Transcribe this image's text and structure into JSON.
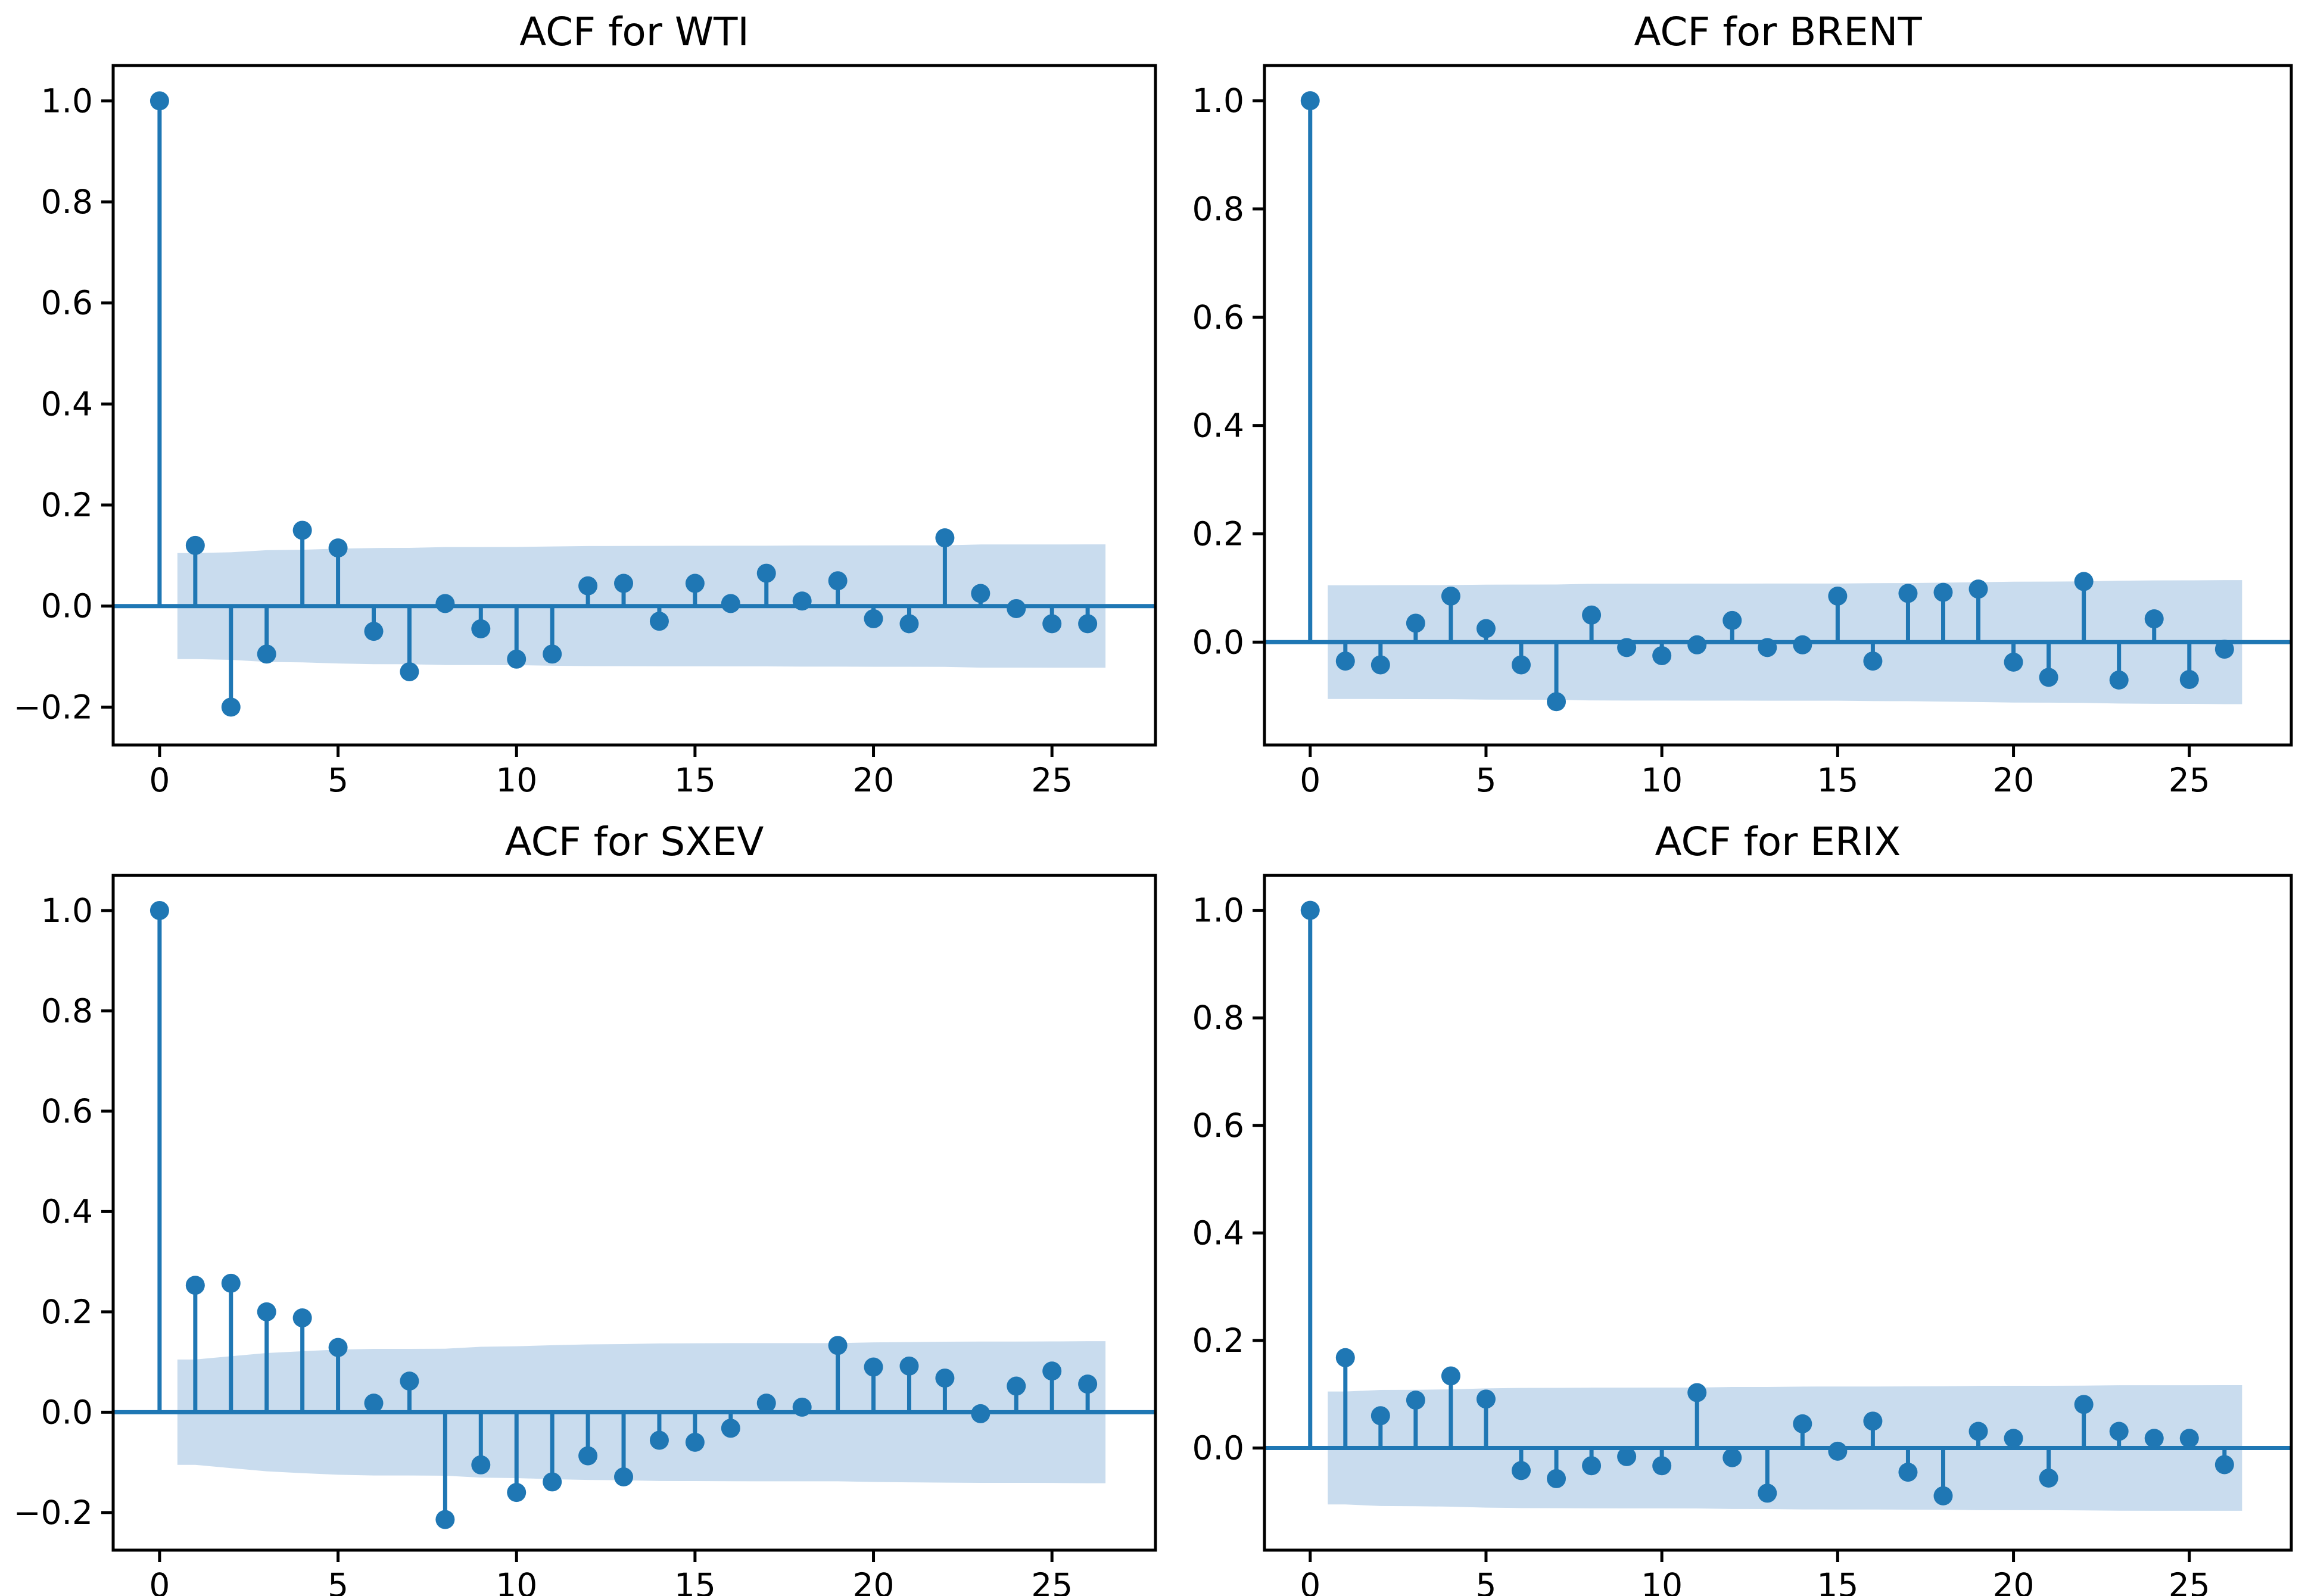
{
  "figure": {
    "background": "#ffffff",
    "accent_color": "#1f77b4",
    "band_color": "#c9dcee",
    "frame_color": "#000000",
    "tick_label_color": "#000000"
  },
  "chart_data": [
    {
      "type": "stem",
      "title": "ACF for WTI",
      "lags": [
        0,
        1,
        2,
        3,
        4,
        5,
        6,
        7,
        8,
        9,
        10,
        11,
        12,
        13,
        14,
        15,
        16,
        17,
        18,
        19,
        20,
        21,
        22,
        23,
        24,
        25,
        26
      ],
      "values": [
        1.0,
        0.12,
        -0.2,
        -0.095,
        0.15,
        0.115,
        -0.05,
        -0.13,
        0.005,
        -0.045,
        -0.105,
        -0.095,
        0.04,
        0.045,
        -0.03,
        0.045,
        0.005,
        0.065,
        0.01,
        0.05,
        -0.025,
        -0.035,
        0.135,
        0.025,
        -0.005,
        -0.035,
        -0.035
      ],
      "conf_band": {
        "halfwidth_lag1": 0.105,
        "x_start": 0.5,
        "x_end": 26.5
      },
      "xticks": [
        0,
        5,
        10,
        15,
        20,
        25
      ],
      "yticks": [
        1.0,
        0.8,
        0.6,
        0.4,
        0.2,
        0.0,
        -0.2
      ],
      "xlim": [
        -1.3,
        27.9
      ],
      "ylim": [
        -0.275,
        1.07
      ],
      "grid": false,
      "legend": null
    },
    {
      "type": "stem",
      "title": "ACF for BRENT",
      "lags": [
        0,
        1,
        2,
        3,
        4,
        5,
        6,
        7,
        8,
        9,
        10,
        11,
        12,
        13,
        14,
        15,
        16,
        17,
        18,
        19,
        20,
        21,
        22,
        23,
        24,
        25,
        26
      ],
      "values": [
        1.0,
        -0.035,
        -0.042,
        0.035,
        0.085,
        0.025,
        -0.042,
        -0.11,
        0.05,
        -0.01,
        -0.025,
        -0.005,
        0.04,
        -0.01,
        -0.005,
        0.085,
        -0.035,
        0.09,
        0.092,
        0.098,
        -0.037,
        -0.065,
        0.112,
        -0.07,
        0.043,
        -0.069,
        -0.013
      ],
      "conf_band": {
        "halfwidth_lag1": 0.105,
        "x_start": 0.5,
        "x_end": 26.5
      },
      "xticks": [
        0,
        5,
        10,
        15,
        20,
        25
      ],
      "yticks": [
        1.0,
        0.8,
        0.6,
        0.4,
        0.2,
        0.0
      ],
      "xlim": [
        -1.3,
        27.9
      ],
      "ylim": [
        -0.19,
        1.065
      ],
      "grid": false,
      "legend": null
    },
    {
      "type": "stem",
      "title": "ACF for SXEV",
      "lags": [
        0,
        1,
        2,
        3,
        4,
        5,
        6,
        7,
        8,
        9,
        10,
        11,
        12,
        13,
        14,
        15,
        16,
        17,
        18,
        19,
        20,
        21,
        22,
        23,
        24,
        25,
        26
      ],
      "values": [
        1.0,
        0.253,
        0.257,
        0.2,
        0.188,
        0.129,
        0.018,
        0.062,
        -0.214,
        -0.105,
        -0.16,
        -0.139,
        -0.087,
        -0.129,
        -0.056,
        -0.06,
        -0.032,
        0.018,
        0.01,
        0.133,
        0.09,
        0.092,
        0.068,
        -0.003,
        0.052,
        0.082,
        0.056
      ],
      "conf_band": {
        "halfwidth_lag1": 0.105,
        "x_start": 0.5,
        "x_end": 26.5
      },
      "xticks": [
        0,
        5,
        10,
        15,
        20,
        25
      ],
      "yticks": [
        1.0,
        0.8,
        0.6,
        0.4,
        0.2,
        0.0,
        -0.2
      ],
      "xlim": [
        -1.3,
        27.9
      ],
      "ylim": [
        -0.275,
        1.07
      ],
      "grid": false,
      "legend": null
    },
    {
      "type": "stem",
      "title": "ACF for ERIX",
      "lags": [
        0,
        1,
        2,
        3,
        4,
        5,
        6,
        7,
        8,
        9,
        10,
        11,
        12,
        13,
        14,
        15,
        16,
        17,
        18,
        19,
        20,
        21,
        22,
        23,
        24,
        25,
        26
      ],
      "values": [
        1.0,
        0.168,
        0.06,
        0.089,
        0.134,
        0.091,
        -0.042,
        -0.057,
        -0.033,
        -0.016,
        -0.033,
        0.103,
        -0.018,
        -0.084,
        0.045,
        -0.006,
        0.05,
        -0.045,
        -0.089,
        0.031,
        0.018,
        -0.056,
        0.081,
        0.031,
        0.018,
        0.018,
        -0.031
      ],
      "conf_band": {
        "halfwidth_lag1": 0.105,
        "x_start": 0.5,
        "x_end": 26.5
      },
      "xticks": [
        0,
        5,
        10,
        15,
        20,
        25
      ],
      "yticks": [
        1.0,
        0.8,
        0.6,
        0.4,
        0.2,
        0.0
      ],
      "xlim": [
        -1.3,
        27.9
      ],
      "ylim": [
        -0.19,
        1.065
      ],
      "grid": false,
      "legend": null
    }
  ]
}
